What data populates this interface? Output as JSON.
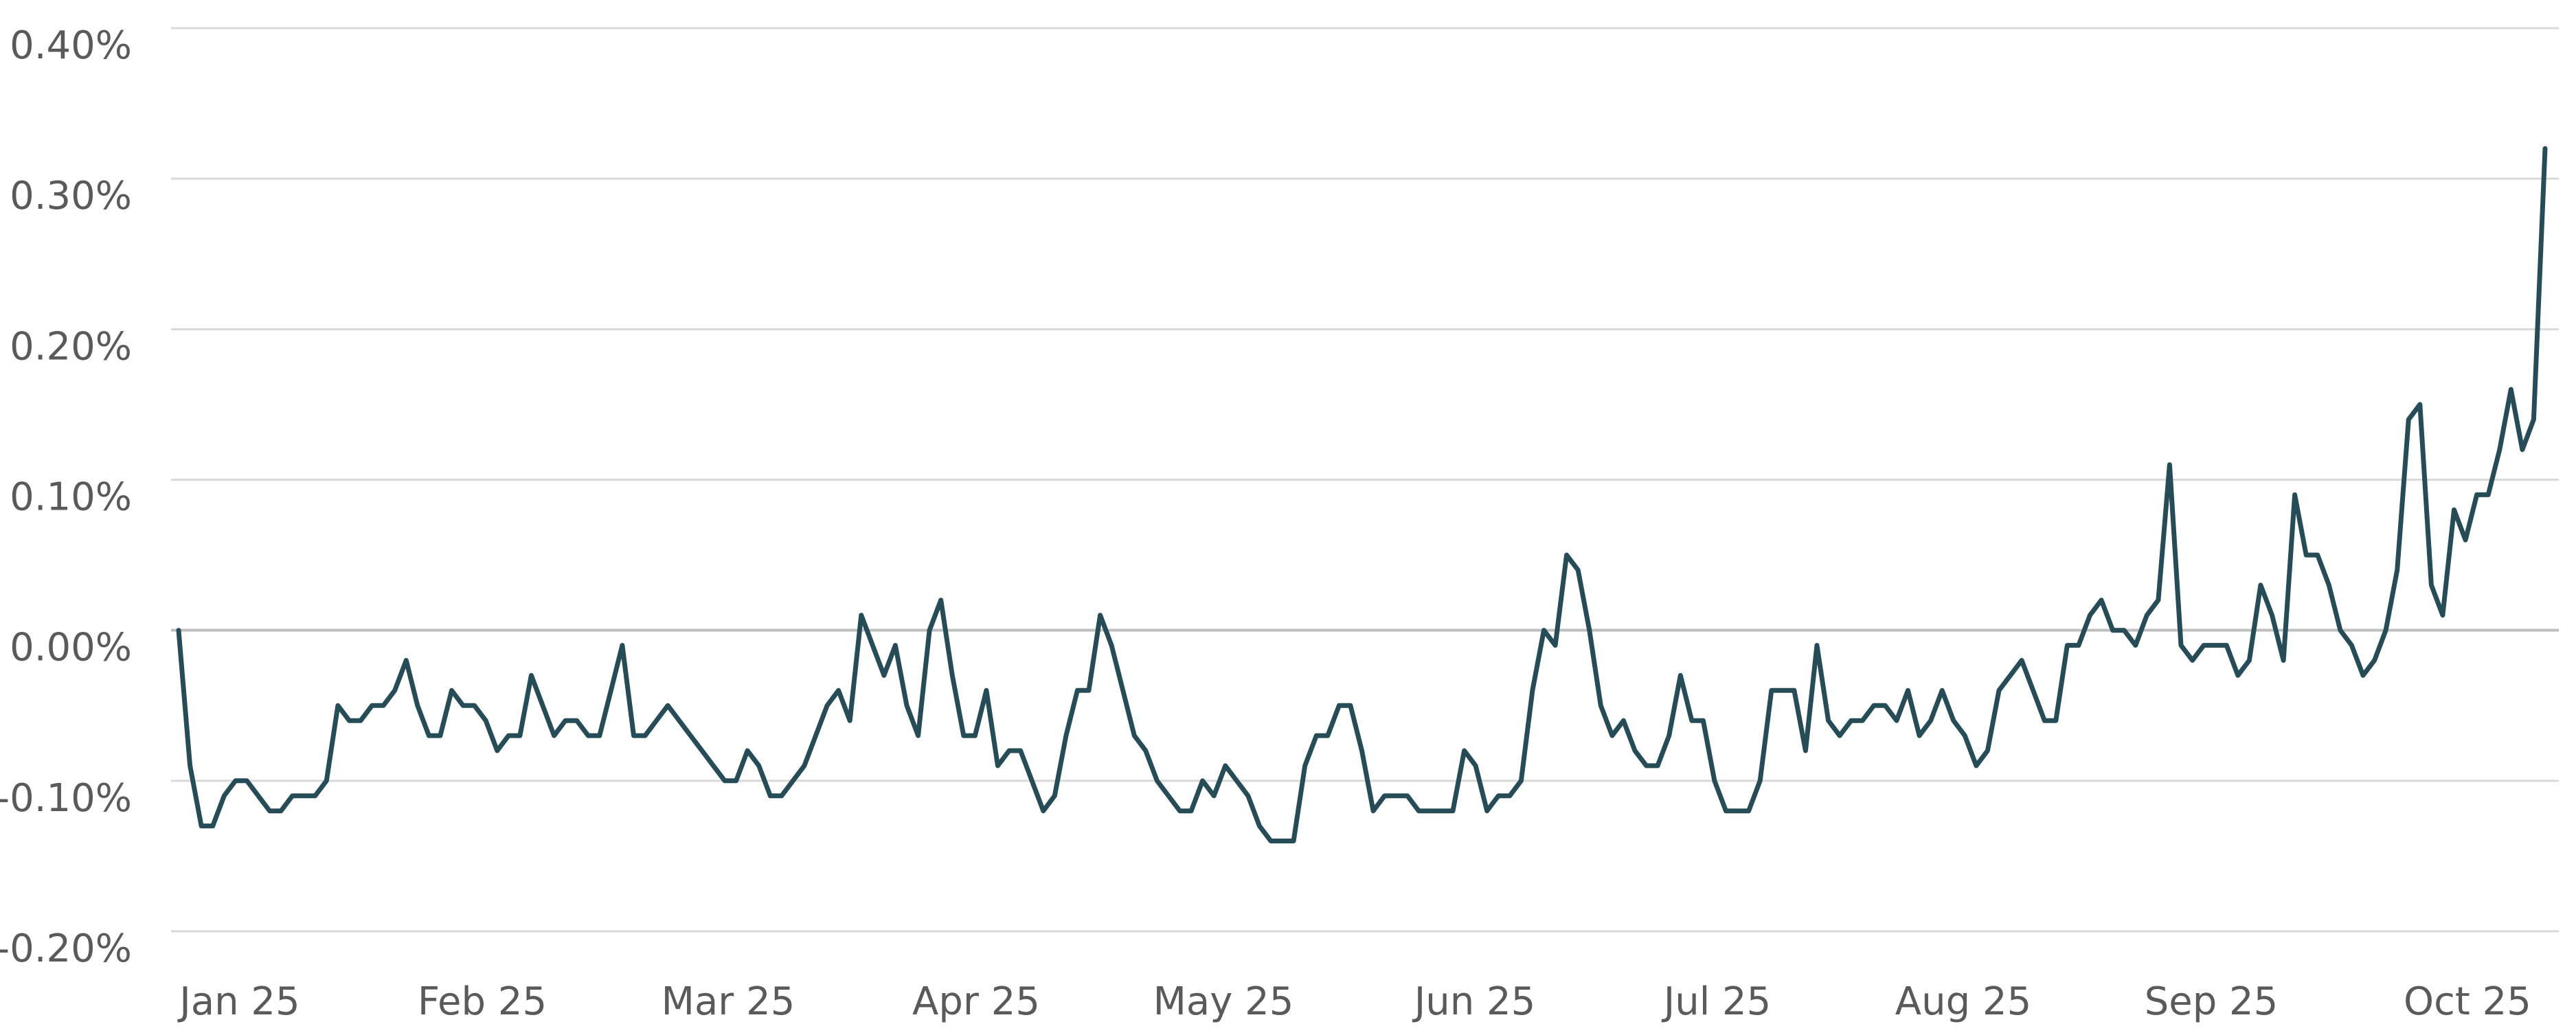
{
  "chart_data": {
    "type": "line",
    "title": "",
    "xlabel": "",
    "ylabel": "",
    "ylim": [
      -0.2,
      0.4
    ],
    "y_ticks": [
      0.4,
      0.3,
      0.2,
      0.1,
      0.0,
      -0.1,
      -0.2
    ],
    "y_tick_labels": [
      "0.40%",
      "0.30%",
      "0.20%",
      "0.10%",
      "0.00%",
      "-0.10%",
      "-0.20%"
    ],
    "x_tick_labels": [
      "Jan 25",
      "Feb 25",
      "Mar 25",
      "Apr 25",
      "May 25",
      "Jun 25",
      "Jul 25",
      "Aug 25",
      "Sep 25",
      "Oct 25"
    ],
    "grid": "horizontal",
    "legend": "none",
    "colors": {
      "line": "#264d57",
      "grid": "#d9d9d9",
      "zero_line": "#bfbfbf",
      "text": "#5a5a5a"
    },
    "series": [
      {
        "values": [
          0.0,
          -0.09,
          -0.13,
          -0.13,
          -0.11,
          -0.1,
          -0.1,
          -0.11,
          -0.12,
          -0.12,
          -0.11,
          -0.11,
          -0.11,
          -0.1,
          -0.05,
          -0.06,
          -0.06,
          -0.05,
          -0.05,
          -0.04,
          -0.02,
          -0.05,
          -0.07,
          -0.07,
          -0.04,
          -0.05,
          -0.05,
          -0.06,
          -0.08,
          -0.07,
          -0.07,
          -0.03,
          -0.05,
          -0.07,
          -0.06,
          -0.06,
          -0.07,
          -0.07,
          -0.04,
          -0.01,
          -0.07,
          -0.07,
          -0.06,
          -0.05,
          -0.06,
          -0.07,
          -0.08,
          -0.09,
          -0.1,
          -0.1,
          -0.08,
          -0.09,
          -0.11,
          -0.11,
          -0.1,
          -0.09,
          -0.07,
          -0.05,
          -0.04,
          -0.06,
          0.01,
          -0.01,
          -0.03,
          -0.01,
          -0.05,
          -0.07,
          0.0,
          0.02,
          -0.03,
          -0.07,
          -0.07,
          -0.04,
          -0.09,
          -0.08,
          -0.08,
          -0.1,
          -0.12,
          -0.11,
          -0.07,
          -0.04,
          -0.04,
          0.01,
          -0.01,
          -0.04,
          -0.07,
          -0.08,
          -0.1,
          -0.11,
          -0.12,
          -0.12,
          -0.1,
          -0.11,
          -0.09,
          -0.1,
          -0.11,
          -0.13,
          -0.14,
          -0.14,
          -0.14,
          -0.09,
          -0.07,
          -0.07,
          -0.05,
          -0.05,
          -0.08,
          -0.12,
          -0.11,
          -0.11,
          -0.11,
          -0.12,
          -0.12,
          -0.12,
          -0.12,
          -0.08,
          -0.09,
          -0.12,
          -0.11,
          -0.11,
          -0.1,
          -0.04,
          0.0,
          -0.01,
          0.05,
          0.04,
          0.0,
          -0.05,
          -0.07,
          -0.06,
          -0.08,
          -0.09,
          -0.09,
          -0.07,
          -0.03,
          -0.06,
          -0.06,
          -0.1,
          -0.12,
          -0.12,
          -0.12,
          -0.1,
          -0.04,
          -0.04,
          -0.04,
          -0.08,
          -0.01,
          -0.06,
          -0.07,
          -0.06,
          -0.06,
          -0.05,
          -0.05,
          -0.06,
          -0.04,
          -0.07,
          -0.06,
          -0.04,
          -0.06,
          -0.07,
          -0.09,
          -0.08,
          -0.04,
          -0.03,
          -0.02,
          -0.04,
          -0.06,
          -0.06,
          -0.01,
          -0.01,
          0.01,
          0.02,
          0.0,
          0.0,
          -0.01,
          0.01,
          0.02,
          0.11,
          -0.01,
          -0.02,
          -0.01,
          -0.01,
          -0.01,
          -0.03,
          -0.02,
          0.03,
          0.01,
          -0.02,
          0.09,
          0.05,
          0.05,
          0.03,
          0.0,
          -0.01,
          -0.03,
          -0.02,
          0.0,
          0.04,
          0.14,
          0.15,
          0.03,
          0.01,
          0.08,
          0.06,
          0.09,
          0.09,
          0.12,
          0.16,
          0.12,
          0.14,
          0.32
        ]
      }
    ]
  }
}
